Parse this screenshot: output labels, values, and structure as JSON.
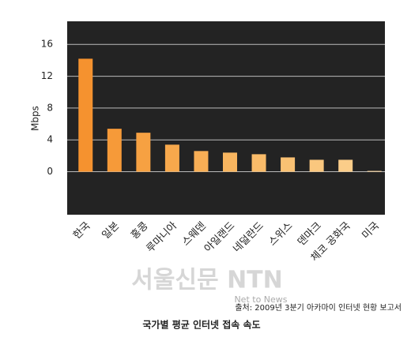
{
  "chart_data": {
    "type": "bar",
    "y_label": "Mbps",
    "categories": [
      "한국",
      "일본",
      "홍콩",
      "루마니아",
      "스웨덴",
      "아일랜드",
      "네덜란드",
      "스위스",
      "덴마크",
      "체코 공화국",
      "미국"
    ],
    "values": [
      14.2,
      5.4,
      4.9,
      3.4,
      2.6,
      2.4,
      2.2,
      1.8,
      1.5,
      1.5,
      0.1
    ],
    "colors": [
      "#f5922f",
      "#f69a39",
      "#f6a142",
      "#f7a84c",
      "#f8ae55",
      "#f8b55f",
      "#f9bb69",
      "#f9c173",
      "#fac77e",
      "#fbcd89",
      "#fcd49a"
    ],
    "ylim": [
      -5.4,
      18.9
    ],
    "yticks": [
      0,
      4,
      8,
      12,
      16
    ],
    "grid": true,
    "plot_background": "#232323",
    "source": "출처: 2009년 3분기 아카마이 인터넷 현황 보고서",
    "caption": "국가별 평균 인터넷 접속 속도",
    "watermark": "서울신문 NTN",
    "watermark_sub": "Net to News"
  }
}
